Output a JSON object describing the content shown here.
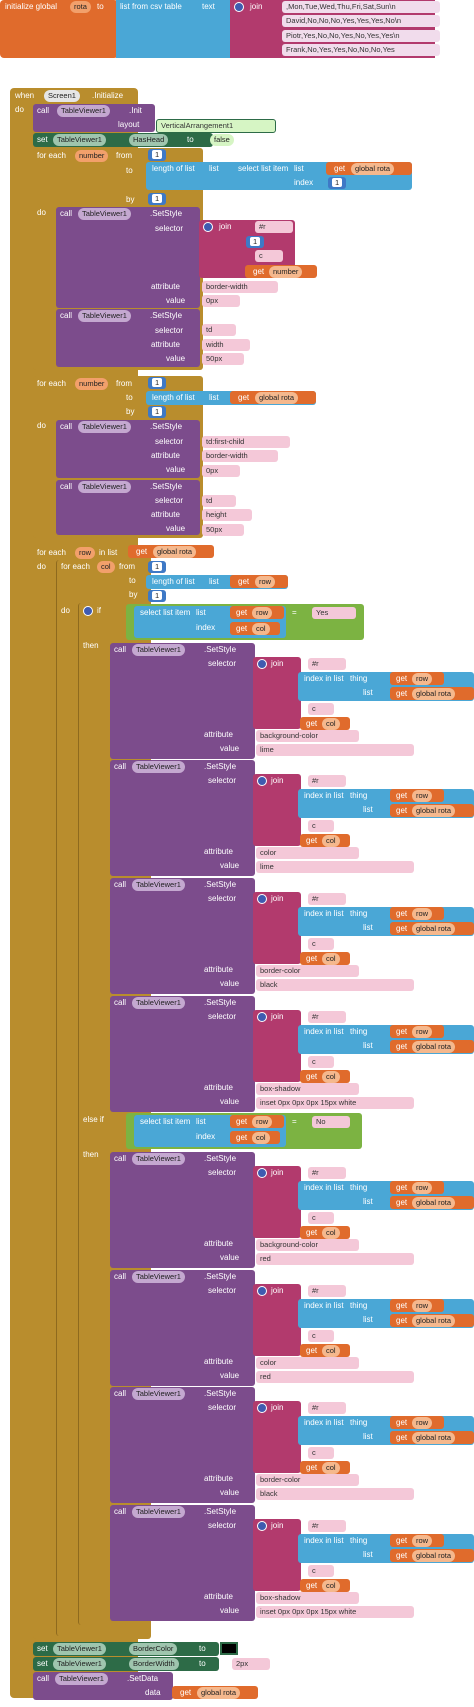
{
  "init": {
    "label": "initialize global",
    "var": "rota",
    "to": "to",
    "csv": "list from csv table",
    "text": "text",
    "join": "join",
    "rows": [
      ",Mon,Tue,Wed,Thu,Fri,Sat,Sun\\n",
      "David,No,No,No,Yes,Yes,Yes,No\\n",
      "Piotr,Yes,No,No,Yes,No,Yes,Yes\\n",
      "Frank,No,Yes,Yes,No,No,No,Yes"
    ]
  },
  "when": {
    "when": "when",
    "screen": "Screen1",
    "event": ".Initialize",
    "do": "do"
  },
  "call_init": {
    "call": "call",
    "comp": "TableViewer1",
    "method": ".Init",
    "layout": "layout",
    "layout_val": "VerticalArrangement1"
  },
  "set_hashead": {
    "set": "set",
    "comp": "TableViewer1",
    "prop": "HasHead",
    "to": "to",
    "val": "false"
  },
  "loop1": {
    "for_each": "for each",
    "var": "number",
    "from": "from",
    "from_val": "1",
    "to": "to",
    "length": "length of list",
    "list": "list",
    "select": "select list item",
    "get": "get",
    "global_rota": "global rota",
    "index": "index",
    "index_val": "1",
    "by": "by",
    "by_val": "1",
    "do": "do",
    "call1": {
      "call": "call",
      "comp": "TableViewer1",
      "method": ".SetStyle",
      "selector": "selector",
      "join": "join",
      "p1": "#r",
      "p2": "1",
      "p3": "c",
      "p4_get": "get",
      "p4_var": "number",
      "attribute": "attribute",
      "attr_val": "border-width",
      "value": "value",
      "value_val": "0px"
    },
    "call2": {
      "call": "call",
      "comp": "TableViewer1",
      "method": ".SetStyle",
      "selector": "selector",
      "sel_val": "td",
      "attribute": "attribute",
      "attr_val": "width",
      "value": "value",
      "value_val": "50px"
    }
  },
  "loop2": {
    "for_each": "for each",
    "var": "number",
    "from": "from",
    "from_val": "1",
    "to": "to",
    "length": "length of list",
    "list": "list",
    "get": "get",
    "global_rota": "global rota",
    "by": "by",
    "by_val": "1",
    "do": "do",
    "call1": {
      "call": "call",
      "comp": "TableViewer1",
      "method": ".SetStyle",
      "selector": "selector",
      "sel_val": "td:first-child",
      "attribute": "attribute",
      "attr_val": "border-width",
      "value": "value",
      "value_val": "0px"
    },
    "call2": {
      "call": "call",
      "comp": "TableViewer1",
      "method": ".SetStyle",
      "selector": "selector",
      "sel_val": "td",
      "attribute": "attribute",
      "attr_val": "height",
      "value": "value",
      "value_val": "50px"
    }
  },
  "loop3": {
    "for_each": "for each",
    "var": "row",
    "in_list": "in list",
    "get": "get",
    "global_rota": "global rota",
    "do": "do",
    "inner": {
      "for_each": "for each",
      "var": "col",
      "from": "from",
      "from_val": "1",
      "to": "to",
      "length": "length of list",
      "list": "list",
      "get": "get",
      "row": "row",
      "by": "by",
      "by_val": "1",
      "do": "do"
    },
    "if": {
      "do": "do",
      "if": "if",
      "else_if": "else if",
      "then": "then",
      "select": "select list item",
      "list": "list",
      "get": "get",
      "row": "row",
      "index": "index",
      "col": "col",
      "eq": "=",
      "yes": "Yes",
      "no": "No"
    },
    "style_common": {
      "call": "call",
      "comp": "TableViewer1",
      "method": ".SetStyle",
      "selector": "selector",
      "join": "join",
      "hash_r": "#r",
      "index_in_list": "index in list",
      "thing": "thing",
      "list": "list",
      "get": "get",
      "row": "row",
      "global_rota": "global rota",
      "c": "c",
      "col": "col",
      "attribute": "attribute",
      "value": "value"
    },
    "then_styles": [
      {
        "attr": "background-color",
        "val": "lime"
      },
      {
        "attr": "color",
        "val": "lime"
      },
      {
        "attr": "border-color",
        "val": "black"
      },
      {
        "attr": "box-shadow",
        "val": "inset 0px 0px 0px 15px white"
      }
    ],
    "else_styles": [
      {
        "attr": "background-color",
        "val": "red"
      },
      {
        "attr": "color",
        "val": "red"
      },
      {
        "attr": "border-color",
        "val": "black"
      },
      {
        "attr": "box-shadow",
        "val": "inset 0px 0px 0px 15px white"
      }
    ]
  },
  "final": {
    "set": "set",
    "comp": "TableViewer1",
    "border_color": "BorderColor",
    "to": "to",
    "border_width": "BorderWidth",
    "width_val": "2px",
    "call": "call",
    "method": ".SetData",
    "data": "data",
    "get": "get",
    "global_rota": "global rota"
  },
  "colors": {
    "orange": "#e06b2c",
    "purple": "#7c4c8c",
    "gold": "#b98d2d",
    "blue": "#4aa7d6",
    "magenta": "#b23a6d",
    "dark_green": "#2d6b47",
    "light_green": "#7cb342"
  }
}
